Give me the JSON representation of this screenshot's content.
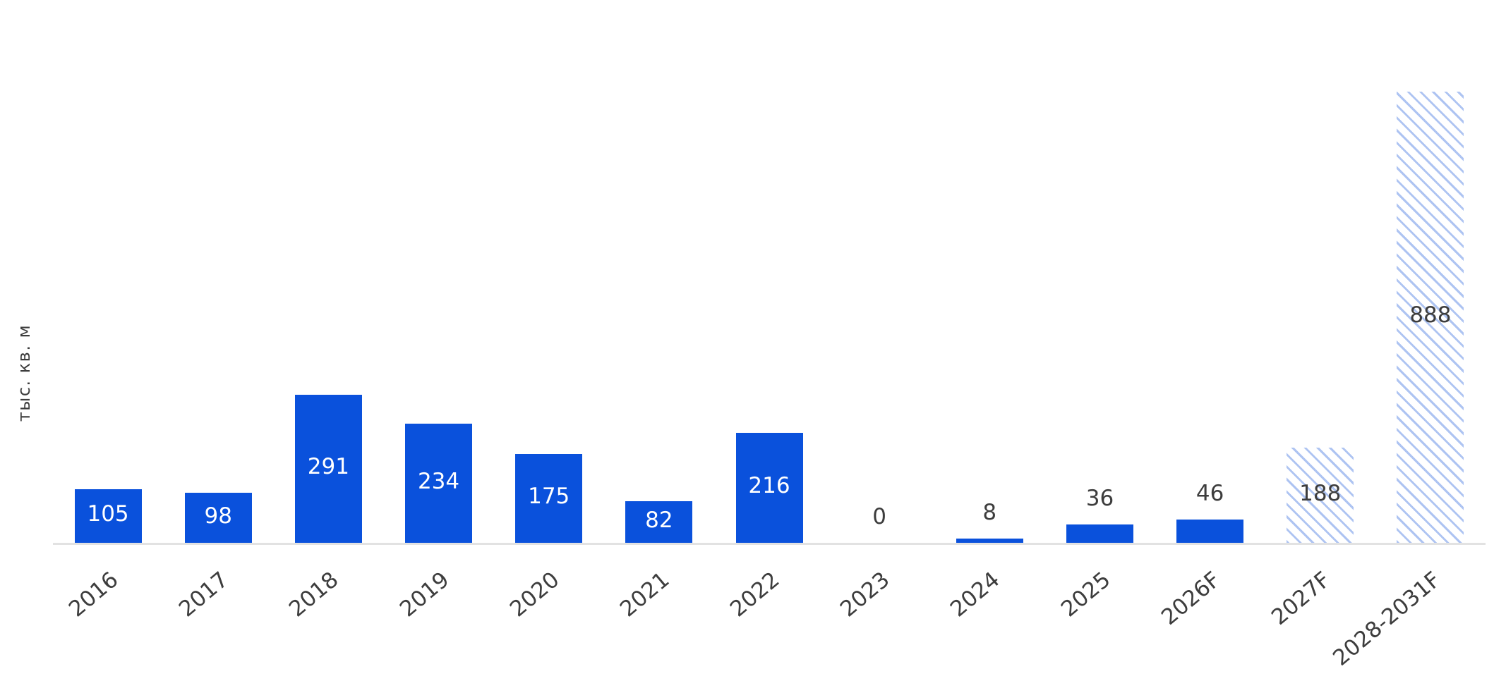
{
  "chart_data": {
    "type": "bar",
    "title": "",
    "xlabel": "",
    "ylabel": "тыс. кв. м",
    "categories": [
      "2016",
      "2017",
      "2018",
      "2019",
      "2020",
      "2021",
      "2022",
      "2023",
      "2024",
      "2025",
      "2026F",
      "2027F",
      "2028-2031F"
    ],
    "values": [
      105,
      98,
      291,
      234,
      175,
      82,
      216,
      0,
      8,
      36,
      46,
      188,
      888
    ],
    "hatched_forecast": [
      false,
      false,
      false,
      false,
      false,
      false,
      false,
      false,
      false,
      false,
      false,
      true,
      true
    ],
    "ylim": [
      0,
      900
    ],
    "grid": false,
    "legend": "none",
    "value_labels": "on",
    "colors": {
      "bar_solid": "#0a51dc",
      "bar_hatch": "#aec4f2",
      "label_inside": "#ffffff",
      "label_outside": "#3d3d3d",
      "tick_text": "#3d3d3d",
      "axis_line": "#e2e2e2"
    }
  }
}
